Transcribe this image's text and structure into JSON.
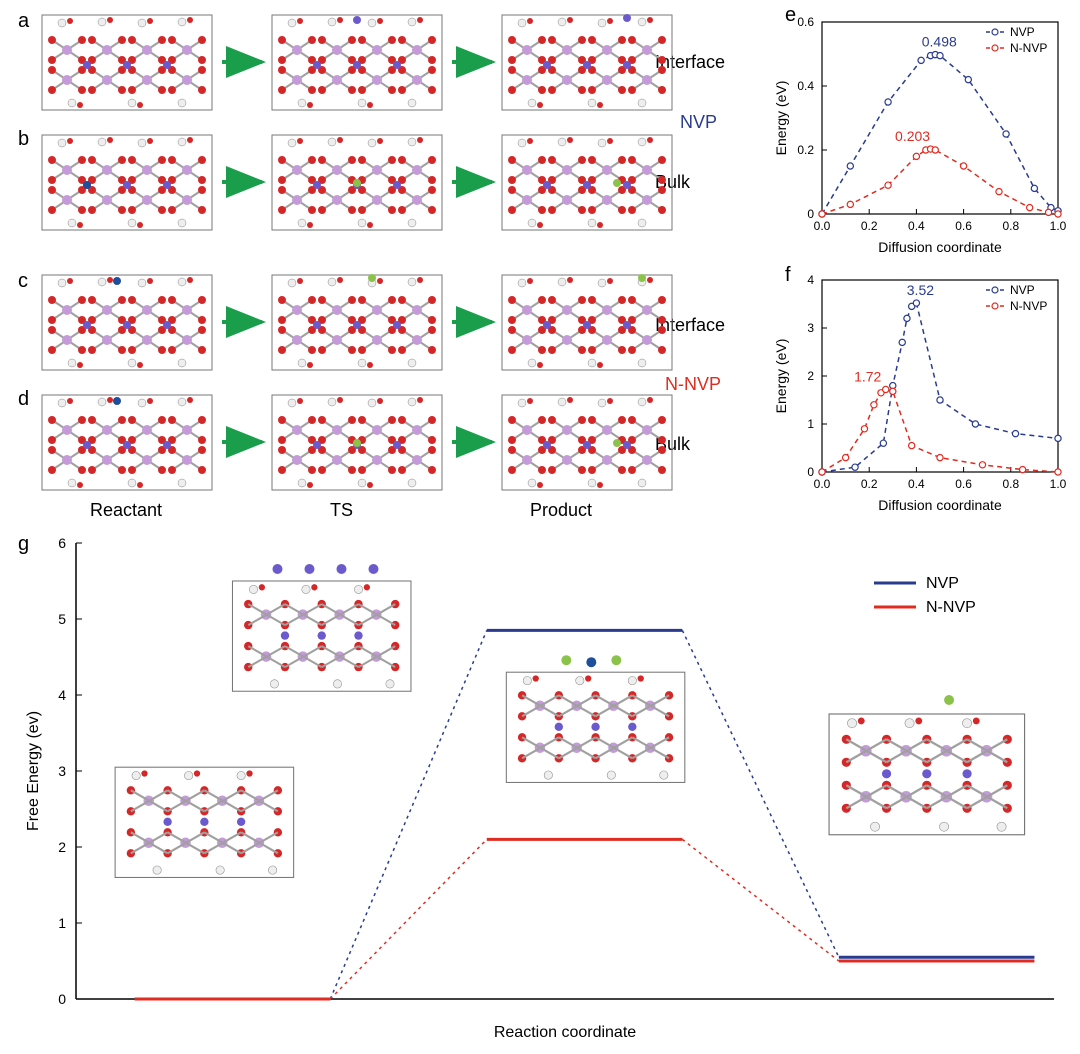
{
  "colors": {
    "nvp": "#2a3b8f",
    "nnvp": "#e02b20",
    "arrow": "#1a9e4b",
    "atom_o": "#d62728",
    "atom_p": "#c49ad8",
    "atom_v": "#a0a0a0",
    "atom_na": "#6a5acd",
    "atom_h": "#eeeeee",
    "atom_n": "#1f4e9c",
    "atom_extra": "#8bc34a",
    "axis": "#000000",
    "bg": "#ffffff"
  },
  "panels": {
    "a": {
      "label": "a",
      "row": "Interface"
    },
    "b": {
      "label": "b",
      "row": "Bulk"
    },
    "c": {
      "label": "c",
      "row": "Interface"
    },
    "d": {
      "label": "d",
      "row": "Bulk"
    },
    "e": {
      "label": "e"
    },
    "f": {
      "label": "f"
    },
    "g": {
      "label": "g"
    }
  },
  "materials": {
    "nvp": "NVP",
    "nnvp": "N-NVP"
  },
  "columns": {
    "reactant": "Reactant",
    "ts": "TS",
    "product": "Product"
  },
  "chart_e": {
    "type": "line",
    "xlabel": "Diffusion coordinate",
    "ylabel": "Energy (eV)",
    "xlim": [
      0,
      1.0
    ],
    "ylim": [
      0,
      0.6
    ],
    "xticks": [
      0.0,
      0.2,
      0.4,
      0.6,
      0.8,
      1.0
    ],
    "yticks": [
      0.0,
      0.2,
      0.4,
      0.6
    ],
    "label_fontsize": 14,
    "tick_fontsize": 12,
    "legend": [
      "NVP",
      "N-NVP"
    ],
    "legend_colors": [
      "#2a3b8f",
      "#e02b20"
    ],
    "peak_labels": [
      "0.498",
      "0.203"
    ],
    "peak_label_colors": [
      "#2a3b8f",
      "#e02b20"
    ],
    "marker": "circle_open",
    "marker_size": 5,
    "line_style": "dash",
    "line_width": 1.5,
    "series": {
      "nvp": {
        "color": "#2a3b8f",
        "x": [
          0.0,
          0.12,
          0.28,
          0.42,
          0.46,
          0.48,
          0.5,
          0.62,
          0.78,
          0.9,
          0.97,
          1.0
        ],
        "y": [
          0.0,
          0.15,
          0.35,
          0.48,
          0.495,
          0.498,
          0.495,
          0.42,
          0.25,
          0.08,
          0.02,
          0.01
        ]
      },
      "nnvp": {
        "color": "#e02b20",
        "x": [
          0.0,
          0.12,
          0.28,
          0.4,
          0.44,
          0.46,
          0.48,
          0.6,
          0.75,
          0.88,
          0.96,
          1.0
        ],
        "y": [
          0.0,
          0.03,
          0.09,
          0.18,
          0.2,
          0.203,
          0.2,
          0.15,
          0.07,
          0.02,
          0.005,
          0.0
        ]
      }
    }
  },
  "chart_f": {
    "type": "line",
    "xlabel": "Diffusion coordinate",
    "ylabel": "Energy (eV)",
    "xlim": [
      0,
      1.0
    ],
    "ylim": [
      0,
      4
    ],
    "xticks": [
      0.0,
      0.2,
      0.4,
      0.6,
      0.8,
      1.0
    ],
    "yticks": [
      0,
      1,
      2,
      3,
      4
    ],
    "label_fontsize": 14,
    "tick_fontsize": 12,
    "legend": [
      "NVP",
      "N-NVP"
    ],
    "legend_colors": [
      "#2a3b8f",
      "#e02b20"
    ],
    "peak_labels": [
      "3.52",
      "1.72"
    ],
    "peak_label_colors": [
      "#2a3b8f",
      "#e02b20"
    ],
    "marker": "circle_open",
    "marker_size": 5,
    "line_style": "dash",
    "line_width": 1.5,
    "series": {
      "nvp": {
        "color": "#2a3b8f",
        "x": [
          0.0,
          0.14,
          0.26,
          0.3,
          0.34,
          0.36,
          0.38,
          0.4,
          0.5,
          0.65,
          0.82,
          1.0
        ],
        "y": [
          0.0,
          0.1,
          0.6,
          1.8,
          2.7,
          3.2,
          3.45,
          3.52,
          1.5,
          1.0,
          0.8,
          0.7
        ]
      },
      "nnvp": {
        "color": "#e02b20",
        "x": [
          0.0,
          0.1,
          0.18,
          0.22,
          0.25,
          0.27,
          0.3,
          0.38,
          0.5,
          0.68,
          0.85,
          1.0
        ],
        "y": [
          0.0,
          0.3,
          0.9,
          1.4,
          1.65,
          1.72,
          1.68,
          0.55,
          0.3,
          0.15,
          0.05,
          0.0
        ]
      }
    }
  },
  "chart_g": {
    "type": "energy_diagram",
    "xlabel": "Reaction coordinate",
    "ylabel": "Free Energy (ev)",
    "ylim": [
      0,
      6
    ],
    "yticks": [
      0,
      1,
      2,
      3,
      4,
      5,
      6
    ],
    "label_fontsize": 16,
    "tick_fontsize": 14,
    "legend": [
      "NVP",
      "N-NVP"
    ],
    "legend_colors": [
      "#2a3b8f",
      "#e02b20"
    ],
    "line_width": 3,
    "states": {
      "reactant_x": [
        0.06,
        0.26
      ],
      "ts_x": [
        0.42,
        0.62
      ],
      "product_x": [
        0.78,
        0.98
      ],
      "nvp_y": [
        0.0,
        4.85,
        0.55
      ],
      "nnvp_y": [
        0.0,
        2.1,
        0.5
      ]
    }
  }
}
